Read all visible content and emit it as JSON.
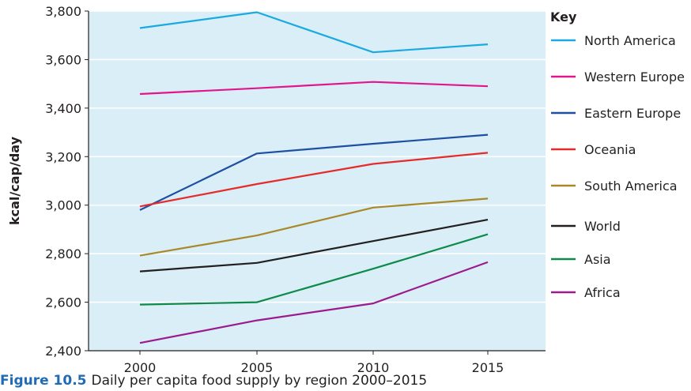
{
  "chart_data": {
    "type": "line",
    "x": [
      2000,
      2005,
      2010,
      2015
    ],
    "ylabel": "kcal/cap/day",
    "ylim": [
      2400,
      3800
    ],
    "yticks": [
      "2,400",
      "2,600",
      "2,800",
      "3,000",
      "3,200",
      "3,400",
      "3,600",
      "3,800"
    ],
    "xticks": [
      "2000",
      "2005",
      "2010",
      "2015"
    ],
    "grid": true,
    "legend_title": "Key",
    "legend_position": "right",
    "plot_background": "#d9eef6",
    "series": [
      {
        "name": "North America",
        "color": "#1ba9e1",
        "values": [
          3730,
          3795,
          3630,
          3663
        ]
      },
      {
        "name": "Western Europe",
        "color": "#e0168c",
        "values": [
          3458,
          3482,
          3508,
          3490
        ]
      },
      {
        "name": "Eastern Europe",
        "color": "#1f4fa3",
        "values": [
          2980,
          3213,
          3253,
          3290
        ]
      },
      {
        "name": "Oceania",
        "color": "#e52b2b",
        "values": [
          2995,
          3087,
          3170,
          3216
        ]
      },
      {
        "name": "South America",
        "color": "#a8892a",
        "values": [
          2792,
          2875,
          2990,
          3027
        ]
      },
      {
        "name": "World",
        "color": "#231f20",
        "values": [
          2727,
          2762,
          2852,
          2940
        ]
      },
      {
        "name": "Asia",
        "color": "#0e8a4a",
        "values": [
          2590,
          2600,
          2738,
          2880
        ]
      },
      {
        "name": "Africa",
        "color": "#9b1b8e",
        "values": [
          2432,
          2525,
          2595,
          2765
        ]
      }
    ]
  },
  "caption": {
    "figure_label": "Figure 10.5",
    "text": "Daily per capita food supply by region 2000–2015"
  }
}
